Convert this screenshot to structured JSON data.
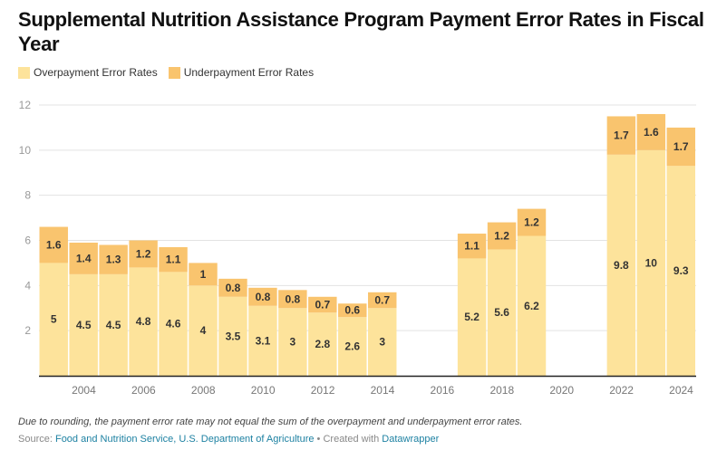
{
  "title": "Supplemental Nutrition Assistance Program Payment Error Rates in Fiscal Year",
  "legend": [
    {
      "label": "Overpayment Error Rates",
      "color": "#fde39b"
    },
    {
      "label": "Underpayment Error Rates",
      "color": "#f9c46e"
    }
  ],
  "note": "Due to rounding, the payment error rate may not equal the sum of the overpayment and underpayment error rates.",
  "source": {
    "prefix": "Source: ",
    "link": "Food and Nutrition Service, U.S. Department of Agriculture",
    "sep": " • Created with ",
    "tool": "Datawrapper"
  },
  "chart_data": {
    "type": "bar",
    "stacked": true,
    "title": "Supplemental Nutrition Assistance Program Payment Error Rates in Fiscal Year",
    "xlabel": "",
    "ylabel": "",
    "ylim": [
      0,
      12
    ],
    "yticks": [
      2,
      4,
      6,
      8,
      10,
      12
    ],
    "xlim": [
      2003,
      2024
    ],
    "xticks": [
      2004,
      2006,
      2008,
      2010,
      2012,
      2014,
      2016,
      2018,
      2020,
      2022,
      2024
    ],
    "grid": true,
    "legend_position": "top-left",
    "categories": [
      2003,
      2004,
      2005,
      2006,
      2007,
      2008,
      2009,
      2010,
      2011,
      2012,
      2013,
      2014,
      2017,
      2018,
      2019,
      2022,
      2023,
      2024
    ],
    "series": [
      {
        "name": "Overpayment Error Rates",
        "color": "#fde39b",
        "values": [
          5,
          4.5,
          4.5,
          4.8,
          4.6,
          4,
          3.5,
          3.1,
          3,
          2.8,
          2.6,
          3,
          5.2,
          5.6,
          6.2,
          9.8,
          10,
          9.3
        ]
      },
      {
        "name": "Underpayment Error Rates",
        "color": "#f9c46e",
        "values": [
          1.6,
          1.4,
          1.3,
          1.2,
          1.1,
          1,
          0.8,
          0.8,
          0.8,
          0.7,
          0.6,
          0.7,
          1.1,
          1.2,
          1.2,
          1.7,
          1.6,
          1.7
        ]
      }
    ]
  }
}
